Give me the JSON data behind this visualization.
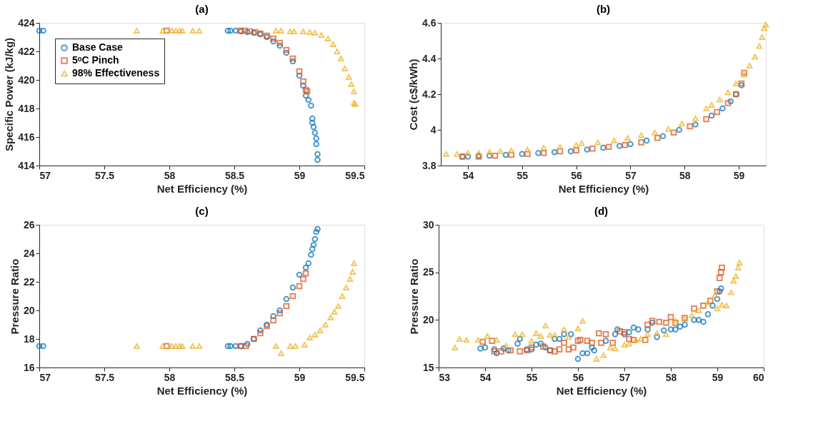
{
  "chart_data": [
    {
      "type": "scatter",
      "title": "(a)",
      "xlabel": "Net Efficiency (%)",
      "ylabel": "Specific Power (kJ/kg)",
      "xlim": [
        57,
        59.5
      ],
      "xticks": [
        57,
        57.5,
        58,
        58.5,
        59,
        59.5
      ],
      "ylim": [
        414,
        424
      ],
      "yticks": [
        414,
        416,
        418,
        420,
        422,
        424
      ],
      "legend": "top left",
      "grid": false,
      "series": [
        {
          "name": "Base Case",
          "color": "#0072bd",
          "marker": "circle",
          "x": [
            57.0,
            57.03,
            58.45,
            58.47,
            58.51,
            58.55,
            58.6,
            58.65,
            58.7,
            58.75,
            58.8,
            58.85,
            58.9,
            58.95,
            59.0,
            59.03,
            59.05,
            59.07,
            59.09,
            59.1,
            59.1,
            59.11,
            59.12,
            59.13,
            59.13,
            59.14,
            59.14
          ],
          "values": [
            423.45,
            423.45,
            423.45,
            423.45,
            423.45,
            423.4,
            423.35,
            423.3,
            423.2,
            423.0,
            422.7,
            422.4,
            421.9,
            421.3,
            420.3,
            419.6,
            418.9,
            418.6,
            418.2,
            417.3,
            417.0,
            416.7,
            416.3,
            415.9,
            415.5,
            414.8,
            414.4
          ]
        },
        {
          "name": "5ᵒC Pinch",
          "color": "#d95319",
          "marker": "square",
          "x": [
            57.98,
            58.55,
            58.58,
            58.62,
            58.66,
            58.7,
            58.75,
            58.8,
            58.85,
            58.9,
            58.95,
            59.0,
            59.03,
            59.05,
            59.06
          ],
          "values": [
            423.45,
            423.45,
            423.45,
            423.4,
            423.35,
            423.25,
            423.1,
            422.9,
            422.6,
            422.1,
            421.5,
            420.6,
            419.9,
            419.3,
            419.2
          ]
        },
        {
          "name": "98% Effectiveness",
          "color": "#edb120",
          "marker": "triangle",
          "x": [
            57.75,
            57.95,
            58.02,
            58.05,
            58.08,
            58.1,
            58.18,
            58.23,
            58.82,
            58.86,
            58.93,
            58.96,
            59.03,
            59.08,
            59.12,
            59.17,
            59.22,
            59.26,
            59.29,
            59.32,
            59.35,
            59.38,
            59.4,
            59.42,
            59.42,
            59.43
          ],
          "values": [
            423.45,
            423.45,
            423.45,
            423.45,
            423.45,
            423.45,
            423.45,
            423.45,
            423.45,
            423.45,
            423.4,
            423.4,
            423.4,
            423.35,
            423.3,
            423.15,
            422.9,
            422.5,
            422.0,
            421.5,
            420.8,
            420.2,
            419.7,
            419.2,
            418.4,
            418.3
          ]
        }
      ]
    },
    {
      "type": "scatter",
      "title": "(b)",
      "xlabel": "Net Efficiency (%)",
      "ylabel": "Cost (c$/kWh)",
      "xlim": [
        53.5,
        59.5
      ],
      "xticks": [
        54,
        55,
        56,
        57,
        58,
        59
      ],
      "ylim": [
        3.8,
        4.6
      ],
      "yticks": [
        3.8,
        4,
        4.2,
        4.4,
        4.6
      ],
      "legend": "top left",
      "grid": false,
      "series": [
        {
          "name": "Base Case",
          "color": "#0072bd",
          "marker": "circle",
          "x": [
            53.9,
            54.0,
            54.2,
            54.4,
            54.7,
            55.0,
            55.3,
            55.6,
            55.9,
            56.2,
            56.5,
            56.8,
            57.0,
            57.3,
            57.6,
            57.9,
            58.2,
            58.5,
            58.7,
            58.85,
            58.95,
            59.05
          ],
          "values": [
            3.85,
            3.85,
            3.855,
            3.855,
            3.86,
            3.865,
            3.87,
            3.875,
            3.88,
            3.89,
            3.9,
            3.91,
            3.92,
            3.94,
            3.965,
            4.0,
            4.03,
            4.08,
            4.12,
            4.16,
            4.2,
            4.25
          ]
        },
        {
          "name": "5ᵒC Pinch",
          "color": "#d95319",
          "marker": "square",
          "x": [
            53.9,
            54.2,
            54.5,
            54.8,
            55.1,
            55.4,
            55.7,
            56.0,
            56.3,
            56.6,
            56.9,
            57.2,
            57.5,
            57.8,
            58.1,
            58.4,
            58.6,
            58.8,
            58.95,
            59.05,
            59.1
          ],
          "values": [
            3.85,
            3.85,
            3.855,
            3.86,
            3.865,
            3.87,
            3.88,
            3.885,
            3.895,
            3.905,
            3.915,
            3.93,
            3.955,
            3.985,
            4.02,
            4.06,
            4.1,
            4.15,
            4.2,
            4.26,
            4.32
          ]
        },
        {
          "name": "98% Effectiveness",
          "color": "#edb120",
          "marker": "triangle",
          "x": [
            53.6,
            53.8,
            54.0,
            54.2,
            54.4,
            54.6,
            54.8,
            55.1,
            55.4,
            55.7,
            56.0,
            56.1,
            56.4,
            56.7,
            56.95,
            57.2,
            57.45,
            57.7,
            57.95,
            58.2,
            58.4,
            58.5,
            58.65,
            58.8,
            58.95,
            59.1,
            59.2,
            59.3,
            59.38,
            59.43,
            59.47,
            59.5
          ],
          "values": [
            3.865,
            3.865,
            3.87,
            3.87,
            3.875,
            3.88,
            3.885,
            3.89,
            3.9,
            3.905,
            3.915,
            3.925,
            3.93,
            3.94,
            3.955,
            3.97,
            3.985,
            4.005,
            4.035,
            4.065,
            4.12,
            4.14,
            4.17,
            4.21,
            4.26,
            4.31,
            4.36,
            4.41,
            4.47,
            4.52,
            4.57,
            4.59
          ]
        }
      ]
    },
    {
      "type": "scatter",
      "title": "(c)",
      "xlabel": "Net Efficiency (%)",
      "ylabel": "Pressure Ratio",
      "xlim": [
        57,
        59.5
      ],
      "xticks": [
        57,
        57.5,
        58,
        58.5,
        59,
        59.5
      ],
      "ylim": [
        16,
        26
      ],
      "yticks": [
        16,
        18,
        20,
        22,
        24,
        26
      ],
      "legend": "top left",
      "grid": false,
      "series": [
        {
          "name": "Base Case",
          "color": "#0072bd",
          "marker": "circle",
          "x": [
            57.0,
            57.03,
            58.45,
            58.47,
            58.51,
            58.55,
            58.6,
            58.65,
            58.7,
            58.75,
            58.8,
            58.85,
            58.9,
            58.95,
            59.0,
            59.05,
            59.07,
            59.09,
            59.1,
            59.11,
            59.12,
            59.13,
            59.14
          ],
          "values": [
            17.5,
            17.5,
            17.5,
            17.5,
            17.5,
            17.5,
            17.65,
            18.0,
            18.6,
            19.0,
            19.6,
            20.0,
            20.8,
            21.6,
            22.5,
            23.0,
            23.3,
            23.9,
            24.3,
            24.6,
            25.0,
            25.5,
            25.7
          ]
        },
        {
          "name": "5ᵒC Pinch",
          "color": "#d95319",
          "marker": "square",
          "x": [
            57.98,
            58.55,
            58.59,
            58.65,
            58.7,
            58.75,
            58.8,
            58.85,
            58.9,
            58.95,
            59.0,
            59.03,
            59.05
          ],
          "values": [
            17.5,
            17.5,
            17.5,
            18.0,
            18.4,
            18.9,
            19.3,
            19.8,
            20.3,
            21.0,
            21.7,
            22.2,
            22.6
          ]
        },
        {
          "name": "98% Effectiveness",
          "color": "#edb120",
          "marker": "triangle",
          "x": [
            57.75,
            57.95,
            58.02,
            58.05,
            58.08,
            58.1,
            58.18,
            58.23,
            58.82,
            58.86,
            58.93,
            58.97,
            59.04,
            59.08,
            59.12,
            59.16,
            59.2,
            59.24,
            59.27,
            59.3,
            59.33,
            59.36,
            59.39,
            59.41,
            59.42
          ],
          "values": [
            17.5,
            17.5,
            17.5,
            17.5,
            17.5,
            17.5,
            17.5,
            17.5,
            17.5,
            17.0,
            17.5,
            17.5,
            17.6,
            18.1,
            18.3,
            18.6,
            19.0,
            19.5,
            19.9,
            20.3,
            21.0,
            21.6,
            22.2,
            22.7,
            23.3
          ]
        }
      ]
    },
    {
      "type": "scatter",
      "title": "(d)",
      "xlabel": "Net Efficiency (%)",
      "ylabel": "Pressure Ratio",
      "xlim": [
        53,
        60
      ],
      "xticks": [
        53,
        54,
        55,
        56,
        57,
        58,
        59,
        60
      ],
      "ylim": [
        15,
        30
      ],
      "yticks": [
        15,
        20,
        25,
        30
      ],
      "legend": "top left",
      "grid": false,
      "series": [
        {
          "name": "Base Case",
          "color": "#0072bd",
          "marker": "circle",
          "x": [
            53.9,
            54.0,
            54.2,
            54.25,
            54.4,
            54.5,
            54.7,
            54.75,
            54.9,
            55.0,
            55.1,
            55.2,
            55.3,
            55.4,
            55.5,
            55.6,
            55.7,
            55.85,
            56.0,
            56.1,
            56.2,
            56.3,
            56.35,
            56.6,
            56.8,
            56.85,
            57.0,
            57.1,
            57.2,
            57.3,
            57.5,
            57.6,
            57.7,
            57.85,
            58.0,
            58.1,
            58.2,
            58.3,
            58.5,
            58.6,
            58.7,
            58.8,
            58.9,
            59.0,
            59.05,
            59.08
          ],
          "values": [
            17.0,
            17.1,
            16.9,
            16.5,
            17.0,
            16.8,
            17.5,
            18.0,
            16.9,
            16.9,
            17.4,
            17.5,
            17.1,
            16.8,
            18.0,
            18.0,
            18.5,
            18.5,
            15.9,
            16.5,
            16.5,
            17.1,
            16.8,
            17.8,
            18.5,
            19.0,
            18.5,
            18.7,
            19.2,
            19.0,
            19.0,
            19.7,
            18.2,
            18.9,
            19.0,
            19.0,
            19.3,
            19.5,
            20.0,
            20.0,
            19.8,
            20.6,
            21.5,
            22.2,
            23.0,
            23.3
          ]
        },
        {
          "name": "5ᵒC Pinch",
          "color": "#d95319",
          "marker": "square",
          "x": [
            53.95,
            54.15,
            54.2,
            54.35,
            54.55,
            54.75,
            54.9,
            55.0,
            55.25,
            55.4,
            55.5,
            55.6,
            55.7,
            55.8,
            55.9,
            56.0,
            56.05,
            56.2,
            56.3,
            56.45,
            56.5,
            56.6,
            56.75,
            56.9,
            57.0,
            57.1,
            57.2,
            57.45,
            57.5,
            57.6,
            57.75,
            57.9,
            58.0,
            58.1,
            58.3,
            58.5,
            58.7,
            58.85,
            59.0,
            59.05,
            59.08,
            59.1
          ],
          "values": [
            17.7,
            17.8,
            16.7,
            16.7,
            16.8,
            16.7,
            16.8,
            17.1,
            17.2,
            16.8,
            16.7,
            16.9,
            17.6,
            16.9,
            17.1,
            17.8,
            17.9,
            17.8,
            17.6,
            18.6,
            17.6,
            18.5,
            17.6,
            18.8,
            18.7,
            18.0,
            17.9,
            17.9,
            19.5,
            19.9,
            19.8,
            19.7,
            20.3,
            19.7,
            20.2,
            21.2,
            21.5,
            22.0,
            23.0,
            24.4,
            25.0,
            25.5
          ]
        },
        {
          "name": "98% Effectiveness",
          "color": "#edb120",
          "marker": "triangle",
          "x": [
            53.35,
            53.45,
            53.6,
            53.85,
            54.05,
            54.25,
            54.45,
            54.65,
            54.8,
            55.0,
            55.1,
            55.2,
            55.3,
            55.4,
            55.5,
            55.7,
            55.8,
            56.0,
            56.1,
            56.4,
            56.55,
            56.7,
            56.8,
            57.0,
            57.1,
            57.25,
            57.35,
            57.5,
            57.7,
            57.9,
            58.1,
            58.3,
            58.45,
            58.6,
            58.8,
            58.95,
            59.0,
            59.1,
            59.2,
            59.3,
            59.35,
            59.4,
            59.45,
            59.48
          ],
          "values": [
            17.1,
            18.0,
            17.9,
            17.9,
            18.3,
            17.9,
            17.3,
            18.5,
            18.5,
            17.8,
            18.6,
            18.3,
            19.4,
            18.4,
            18.4,
            19.0,
            18.2,
            19.1,
            19.9,
            15.9,
            16.3,
            17.1,
            17.0,
            17.4,
            17.5,
            17.9,
            18.0,
            18.5,
            18.6,
            18.5,
            19.9,
            20.1,
            20.5,
            21.0,
            21.8,
            22.6,
            21.2,
            21.6,
            21.5,
            22.9,
            24.1,
            24.6,
            25.5,
            26.0
          ]
        }
      ]
    }
  ]
}
